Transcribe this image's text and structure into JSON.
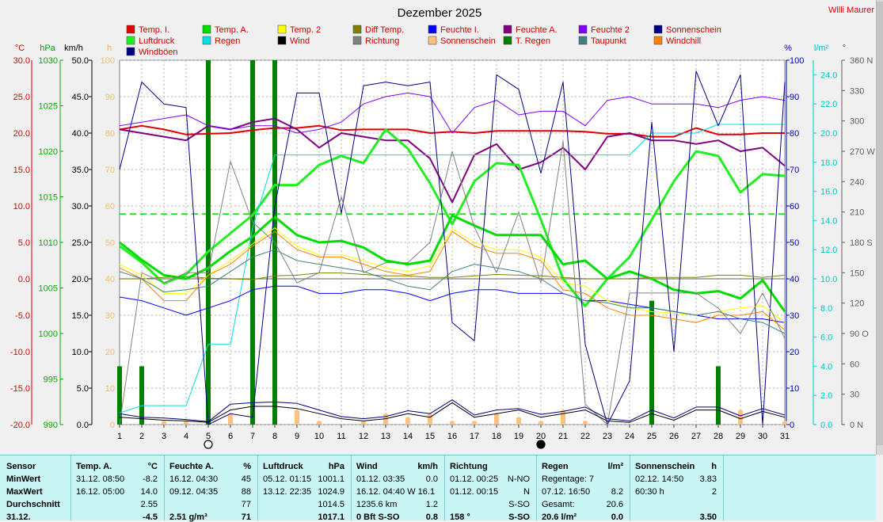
{
  "title": "Dezember 2025",
  "author": "Willi Maurer",
  "colors": {
    "temp_i": "#e00000",
    "temp_a": "#00dd00",
    "temp2": "#ffff00",
    "diff_temp": "#808000",
    "feuchte_i": "#0000ff",
    "feuchte_a": "#800080",
    "feuchte2": "#8000ff",
    "sonnenschein": "#000080",
    "luftdruck": "#22ee22",
    "regen": "#00e0e0",
    "wind": "#000000",
    "richtung": "#808080",
    "sonnenschein2": "#ffc080",
    "t_regen": "#008000",
    "taupunkt": "#408080",
    "windchill": "#ff8000",
    "windboeen": "#000080"
  },
  "legend": [
    {
      "label": "Temp. I.",
      "color": "#e00000"
    },
    {
      "label": "Temp. A.",
      "color": "#00dd00"
    },
    {
      "label": "Temp. 2",
      "color": "#ffff00"
    },
    {
      "label": "Diff Temp.",
      "color": "#808000"
    },
    {
      "label": "Feuchte I.",
      "color": "#0000ff"
    },
    {
      "label": "Feuchte A.",
      "color": "#800080"
    },
    {
      "label": "Feuchte 2",
      "color": "#8000ff"
    },
    {
      "label": "Sonnenschein",
      "color": "#000080"
    },
    {
      "label": "Luftdruck",
      "color": "#22ee22"
    },
    {
      "label": "Regen",
      "color": "#00e0e0"
    },
    {
      "label": "Wind",
      "color": "#000000"
    },
    {
      "label": "Richtung",
      "color": "#808080"
    },
    {
      "label": "Sonnenschein",
      "color": "#ffc080"
    },
    {
      "label": "T. Regen",
      "color": "#008000"
    },
    {
      "label": "Taupunkt",
      "color": "#408080"
    },
    {
      "label": "Windchill",
      "color": "#ff8000"
    },
    {
      "label": "Windböen",
      "color": "#000080"
    }
  ],
  "chart_data": {
    "type": "line",
    "x": [
      1,
      2,
      3,
      4,
      5,
      6,
      7,
      8,
      9,
      10,
      11,
      12,
      13,
      14,
      15,
      16,
      17,
      18,
      19,
      20,
      21,
      22,
      23,
      24,
      25,
      26,
      27,
      28,
      29,
      30,
      31
    ],
    "axis_units": {
      "temp": "°C",
      "pressure": "hPa",
      "wind": "km/h",
      "sun": "h",
      "humidity": "%",
      "rain": "l/m²",
      "direction": "°"
    },
    "axes": {
      "temp": {
        "range": [
          -20,
          30
        ],
        "ticks": [
          "30.0",
          "25.0",
          "20.0",
          "15.0",
          "10.0",
          "5.0",
          "0.0",
          "-5.0",
          "-10.0",
          "-15.0",
          "-20.0"
        ]
      },
      "pressure": {
        "range": [
          990,
          1030
        ],
        "ticks": [
          "1030",
          "1025",
          "1020",
          "1015",
          "1010",
          "1005",
          "1000",
          "995",
          "990"
        ]
      },
      "wind": {
        "range": [
          0,
          50
        ],
        "ticks": [
          "50.0",
          "45.0",
          "40.0",
          "35.0",
          "30.0",
          "25.0",
          "20.0",
          "15.0",
          "10.0",
          "5.0",
          "0.0"
        ]
      },
      "sun": {
        "range": [
          0,
          100
        ],
        "ticks": [
          "100",
          "90",
          "80",
          "70",
          "60",
          "50",
          "40",
          "30",
          "20",
          "10",
          "0"
        ]
      },
      "humidity": {
        "range": [
          0,
          100
        ],
        "ticks": [
          "100",
          "90",
          "80",
          "70",
          "60",
          "50",
          "40",
          "30",
          "20",
          "10",
          "0"
        ]
      },
      "rain": {
        "range": [
          0,
          25
        ],
        "ticks": [
          "24.0",
          "22.0",
          "20.0",
          "18.0",
          "16.0",
          "14.0",
          "12.0",
          "10.0",
          "8.0",
          "6.0",
          "4.0",
          "2.0",
          "0.0"
        ]
      },
      "direction": {
        "range": [
          0,
          360
        ],
        "ticks": [
          "360 N",
          "330",
          "300",
          "270 W",
          "240",
          "210",
          "180 S",
          "150",
          "120",
          "90 O",
          "60",
          "30",
          "0 N"
        ]
      }
    },
    "series": [
      {
        "name": "Temp. I.",
        "axis": "temp",
        "color": "#e00000",
        "width": 2,
        "values": [
          20.5,
          21.0,
          20.5,
          19.8,
          19.9,
          20.0,
          20.4,
          20.7,
          20.7,
          21.0,
          20.4,
          20.5,
          20.5,
          20.5,
          20.0,
          20.2,
          20.0,
          20.3,
          20.3,
          20.3,
          20.3,
          20.2,
          19.9,
          19.9,
          19.5,
          19.5,
          20.7,
          19.8,
          19.8,
          20.0,
          20.0
        ]
      },
      {
        "name": "Feuchte A.",
        "axis": "humidity",
        "color": "#800080",
        "width": 2,
        "values": [
          81,
          80,
          79,
          78,
          82,
          81,
          83,
          84,
          81,
          76,
          80,
          79,
          78,
          78,
          73,
          61,
          74,
          77,
          70,
          72,
          76,
          70,
          79,
          80,
          78,
          78,
          77,
          78,
          75,
          76,
          71
        ]
      },
      {
        "name": "Feuchte 2",
        "axis": "humidity",
        "color": "#8000ff",
        "width": 1,
        "values": [
          82,
          83,
          84,
          85,
          82,
          81,
          82,
          82,
          80,
          81,
          83,
          88,
          90,
          91,
          90,
          80,
          87,
          89,
          85,
          86,
          86,
          82,
          89,
          90,
          88,
          88,
          88,
          87,
          89,
          90,
          89
        ]
      },
      {
        "name": "Luftdruck",
        "axis": "pressure",
        "color": "#22ee22",
        "width": 3,
        "values": [
          1009.6,
          1007.8,
          1005.5,
          1006.5,
          1009.0,
          1011.0,
          1013.0,
          1016.3,
          1016.3,
          1018.5,
          1019.5,
          1018.7,
          1022.4,
          1020.3,
          1016.5,
          1012.0,
          1016.7,
          1018.7,
          1018.5,
          1012.5,
          1006.0,
          1003.0,
          1006.0,
          1008.4,
          1012.5,
          1016.7,
          1020.0,
          1019.5,
          1015.5,
          1017.5,
          1017.3
        ]
      },
      {
        "name": "Temp. A.",
        "axis": "temp",
        "color": "#00dd00",
        "width": 3,
        "values": [
          5.0,
          2.6,
          0.5,
          0.0,
          1.5,
          3.8,
          5.8,
          8.5,
          6.0,
          5.0,
          5.2,
          4.3,
          2.5,
          2.0,
          2.5,
          8.7,
          7.3,
          6.0,
          6.0,
          6.0,
          2.0,
          2.5,
          0.0,
          1.0,
          0.0,
          -1.5,
          -2.0,
          -1.7,
          -2.7,
          -0.2,
          -4.5
        ]
      },
      {
        "name": "Regen",
        "axis": "rain",
        "color": "#00e0e0",
        "width": 1,
        "values": [
          0.8,
          1.3,
          1.3,
          1.3,
          5.5,
          5.5,
          13.5,
          18.5,
          18.5,
          18.5,
          18.5,
          18.5,
          18.5,
          18.5,
          18.5,
          18.5,
          18.5,
          18.5,
          18.5,
          18.5,
          18.5,
          18.5,
          18.5,
          18.5,
          20.0,
          20.0,
          20.0,
          20.6,
          20.6,
          20.6,
          20.6
        ]
      },
      {
        "name": "Sonnenschein",
        "axis": "sun",
        "color": "#000080",
        "width": 1,
        "values": [
          70,
          94,
          88,
          87,
          0,
          3,
          2,
          60,
          91,
          91,
          58,
          93,
          94,
          93,
          94,
          28,
          23,
          96,
          92,
          69,
          94,
          22,
          0,
          12,
          83,
          20,
          97,
          82,
          96,
          0,
          94
        ]
      },
      {
        "name": "Feuchte I.",
        "axis": "humidity",
        "color": "#0000ff",
        "width": 1,
        "values": [
          35,
          34,
          32,
          30,
          32,
          34,
          37,
          38,
          38,
          36,
          36,
          37,
          37,
          36,
          34,
          36,
          37,
          37,
          36,
          36,
          36,
          34,
          34,
          33,
          32,
          31,
          30,
          29,
          29,
          29,
          28
        ]
      },
      {
        "name": "Diff Temp.",
        "axis": "temp",
        "color": "#808000",
        "width": 1,
        "values": [
          0,
          0,
          0.2,
          0.3,
          0.1,
          0,
          -0.1,
          0.4,
          0.5,
          0.8,
          0.8,
          0.6,
          0.4,
          0.4,
          0.2,
          0.2,
          0.4,
          0.6,
          0.5,
          0.4,
          0.2,
          0,
          0,
          0,
          0.2,
          0.2,
          0.2,
          0.5,
          0.5,
          0.2,
          0.5
        ]
      },
      {
        "name": "Temp. 2",
        "axis": "temp",
        "color": "#ffff00",
        "width": 1,
        "values": [
          2.0,
          0.5,
          -2.0,
          -2.0,
          0.5,
          2.5,
          4.8,
          7.0,
          4.5,
          3.3,
          3.3,
          2.5,
          1.5,
          1.0,
          1.8,
          6.9,
          5.0,
          4.0,
          4.0,
          3.0,
          -0.5,
          -1.0,
          -3.0,
          -4.0,
          -4.5,
          -4.7,
          -5.0,
          -4.5,
          -4.0,
          -3.7,
          -6.0
        ]
      },
      {
        "name": "Windchill",
        "axis": "temp",
        "color": "#ff8000",
        "width": 1,
        "values": [
          1.5,
          0.0,
          -3.0,
          -3.0,
          0.5,
          2.0,
          4.5,
          6.5,
          4.0,
          3.0,
          3.0,
          2.0,
          1.0,
          0.5,
          1.0,
          6.5,
          4.5,
          3.5,
          3.5,
          2.5,
          -1.5,
          -2.0,
          -4.0,
          -5.0,
          -5.0,
          -5.5,
          -6.0,
          -5.0,
          -5.0,
          -4.5,
          -7.0
        ]
      },
      {
        "name": "Taupunkt",
        "axis": "temp",
        "color": "#408080",
        "width": 1,
        "values": [
          1.0,
          0.0,
          -1.8,
          -1.5,
          -1.0,
          1.0,
          3.0,
          4.0,
          2.5,
          2.0,
          1.5,
          1.0,
          0.0,
          -1.0,
          -1.5,
          1.0,
          2.0,
          1.5,
          1.0,
          0.0,
          -2.0,
          -3.0,
          -3.3,
          -4.0,
          -4.0,
          -4.5,
          -5.0,
          -4.5,
          -5.5,
          -6.0,
          -7.5
        ]
      },
      {
        "name": "Richtung",
        "axis": "direction",
        "color": "#808080",
        "width": 1,
        "values": [
          0,
          150,
          140,
          150,
          150,
          260,
          200,
          180,
          140,
          150,
          225,
          150,
          160,
          160,
          180,
          270,
          195,
          150,
          210,
          140,
          280,
          20,
          0,
          130,
          130,
          130,
          130,
          115,
          90,
          130,
          85
        ]
      },
      {
        "name": "Wind",
        "axis": "wind",
        "color": "#000000",
        "width": 1,
        "values": [
          1.0,
          0.8,
          0.6,
          0.5,
          0.3,
          2.0,
          2.5,
          2.5,
          2.2,
          1.5,
          0.8,
          0.5,
          0.8,
          1.5,
          1.0,
          3.0,
          1.0,
          1.5,
          2.0,
          1.0,
          1.5,
          2.0,
          0.5,
          0.3,
          1.5,
          0.6,
          2.0,
          2.0,
          0.8,
          1.8,
          1.0
        ]
      },
      {
        "name": "Windböen",
        "axis": "wind",
        "color": "#000080",
        "width": 1,
        "values": [
          1.5,
          1.0,
          0.9,
          0.7,
          0.4,
          2.8,
          3.0,
          3.1,
          2.9,
          2.0,
          1.1,
          0.8,
          1.1,
          1.9,
          1.5,
          3.4,
          1.3,
          2.0,
          2.2,
          1.4,
          1.8,
          2.4,
          0.8,
          0.5,
          2.0,
          0.9,
          2.4,
          2.4,
          1.2,
          2.2,
          1.3
        ]
      }
    ],
    "hlines": [
      {
        "axis": "temp",
        "value": 0,
        "color": "#808080"
      },
      {
        "axis": "temp",
        "value": 8.9,
        "color": "#00dd00",
        "dash": true
      }
    ],
    "rain_bars": {
      "axis": "rain",
      "color": "#008000",
      "values": [
        [
          1,
          4.0
        ],
        [
          2,
          4.0
        ],
        [
          5,
          25.0
        ],
        [
          7,
          25.0
        ],
        [
          8,
          25.0
        ],
        [
          25,
          8.5
        ],
        [
          28,
          4.0
        ]
      ]
    },
    "sun_bars": {
      "axis": "sun",
      "color": "#ffc080",
      "values": [
        [
          1,
          2
        ],
        [
          2,
          4
        ],
        [
          3,
          1
        ],
        [
          4,
          1
        ],
        [
          5,
          0
        ],
        [
          6,
          3
        ],
        [
          7,
          4
        ],
        [
          8,
          2
        ],
        [
          9,
          4
        ],
        [
          10,
          1
        ],
        [
          11,
          0
        ],
        [
          12,
          1
        ],
        [
          13,
          3
        ],
        [
          14,
          2
        ],
        [
          15,
          3
        ],
        [
          16,
          1
        ],
        [
          17,
          1
        ],
        [
          18,
          3
        ],
        [
          19,
          2
        ],
        [
          20,
          1
        ],
        [
          21,
          4
        ],
        [
          22,
          1
        ],
        [
          23,
          0
        ],
        [
          24,
          0
        ],
        [
          25,
          1
        ],
        [
          26,
          0
        ],
        [
          27,
          0
        ],
        [
          28,
          2
        ],
        [
          29,
          4
        ],
        [
          30,
          0
        ],
        [
          31,
          1
        ]
      ]
    },
    "moon": [
      {
        "day": 5,
        "phase": "full"
      },
      {
        "day": 20,
        "phase": "new"
      }
    ]
  },
  "stats": {
    "sensor": {
      "header": "Sensor",
      "rows": [
        "MinWert",
        "MaxWert",
        "Durchschnitt",
        "31.12."
      ]
    },
    "temp": {
      "header": "Temp. A.",
      "unit": "°C",
      "rows": [
        [
          "31.12.  08:50",
          "-8.2"
        ],
        [
          "16.12.  05:00",
          "14.0"
        ],
        [
          "",
          "2.55"
        ],
        [
          "",
          "-4.5"
        ]
      ]
    },
    "feuchte": {
      "header": "Feuchte A.",
      "unit": "%",
      "rows": [
        [
          "16.12.  04:30",
          "45"
        ],
        [
          "09.12.  04:35",
          "88"
        ],
        [
          "",
          "77"
        ],
        [
          "2.51 g/m³",
          "71"
        ]
      ]
    },
    "luftdruck": {
      "header": "Luftdruck",
      "unit": "hPa",
      "rows": [
        [
          "05.12.  01:15",
          "1001.1"
        ],
        [
          "13.12.  22:35",
          "1024.9"
        ],
        [
          "",
          "1014.5"
        ],
        [
          "",
          "1017.1"
        ]
      ]
    },
    "wind": {
      "header": "Wind",
      "unit": "km/h",
      "rows": [
        [
          "01.12.  03:35",
          "0.0"
        ],
        [
          "16.12.  04:40  W 16.1",
          ""
        ],
        [
          "1235.6 km",
          "1.2"
        ],
        [
          "0 Bft S-SO",
          "0.8"
        ]
      ]
    },
    "richtung": {
      "header": "Richtung",
      "unit": "",
      "rows": [
        [
          "01.12.  00:25",
          "N-NO"
        ],
        [
          "01.12.  00:15",
          "N"
        ],
        [
          "",
          "S-SO"
        ],
        [
          "158 °",
          "S-SO"
        ]
      ]
    },
    "regen": {
      "header": "Regen",
      "unit": "l/m²",
      "rows": [
        [
          "Regentage: 7",
          ""
        ],
        [
          "07.12.  16:50",
          "8.2"
        ],
        [
          "Gesamt:",
          "20.6"
        ],
        [
          "20.6 l/m²",
          "0.0"
        ]
      ]
    },
    "sonne": {
      "header": "Sonnenschein",
      "unit": "h",
      "rows": [
        [
          "02.12.  14:50",
          "3.83"
        ],
        [
          "60:30 h",
          "2"
        ],
        [
          "",
          ""
        ],
        [
          "",
          "3.50"
        ]
      ]
    }
  }
}
